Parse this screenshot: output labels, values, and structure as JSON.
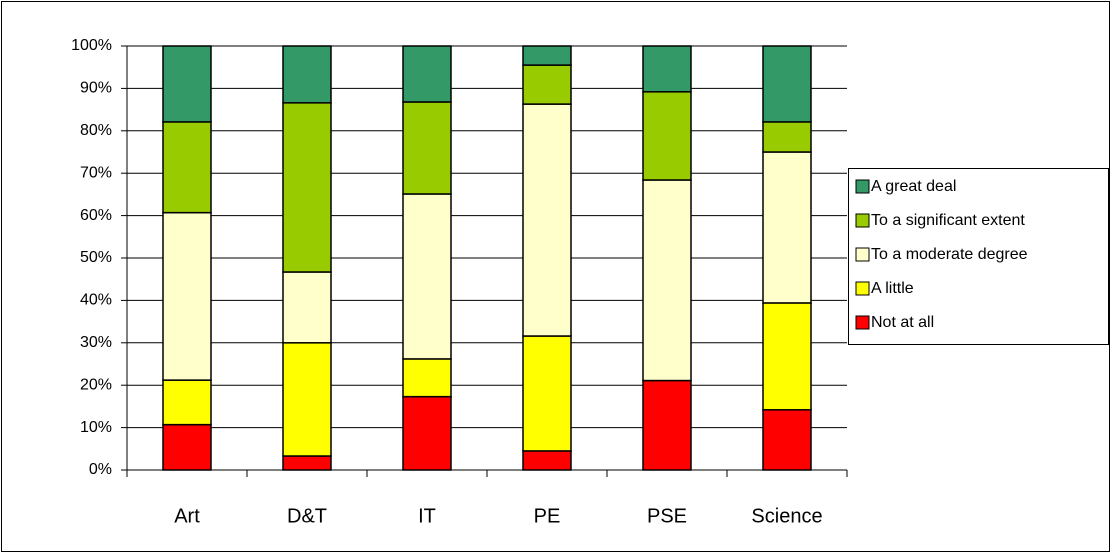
{
  "chart_data": {
    "type": "stacked_bar",
    "categories": [
      "Art",
      "D&T",
      "IT",
      "PE",
      "PSE",
      "Science"
    ],
    "series": [
      {
        "name": "Not at all",
        "color": "#ff0000",
        "values": [
          10.7,
          3.3,
          17.3,
          4.5,
          21.1,
          14.2
        ]
      },
      {
        "name": "A little",
        "color": "#ffff00",
        "values": [
          10.5,
          26.7,
          8.9,
          27.1,
          0,
          25.2
        ]
      },
      {
        "name": "To a moderate degree",
        "color": "#ffffcc",
        "values": [
          39.5,
          16.7,
          38.9,
          54.7,
          47.3,
          35.6
        ]
      },
      {
        "name": "To a significant extent",
        "color": "#99cc00",
        "values": [
          21.4,
          39.9,
          21.7,
          9.2,
          20.8,
          7.1
        ]
      },
      {
        "name": "A great deal",
        "color": "#339966",
        "values": [
          17.9,
          13.4,
          13.2,
          4.5,
          10.8,
          17.9
        ]
      }
    ],
    "ylim": [
      0,
      100
    ],
    "yticks": [
      {
        "value": 0,
        "label": "0%"
      },
      {
        "value": 10,
        "label": "10%"
      },
      {
        "value": 20,
        "label": "20%"
      },
      {
        "value": 30,
        "label": "30%"
      },
      {
        "value": 40,
        "label": "40%"
      },
      {
        "value": 50,
        "label": "50%"
      },
      {
        "value": 60,
        "label": "60%"
      },
      {
        "value": 70,
        "label": "70%"
      },
      {
        "value": 80,
        "label": "80%"
      },
      {
        "value": 90,
        "label": "90%"
      },
      {
        "value": 100,
        "label": "100%"
      }
    ],
    "grid": true,
    "legend": "right"
  }
}
